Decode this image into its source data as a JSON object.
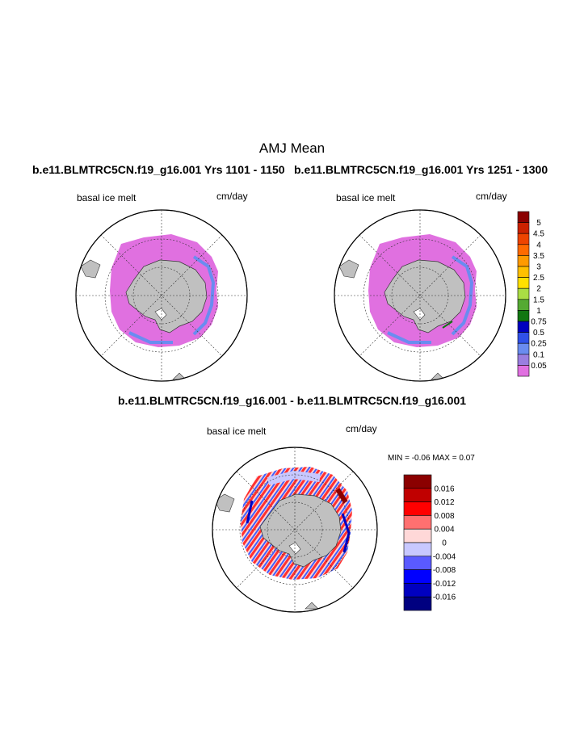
{
  "page": {
    "title": "AMJ Mean",
    "left_case_title": "b.e11.BLMTRC5CN.f19_g16.001  Yrs 1101 - 1150",
    "right_case_title": "b.e11.BLMTRC5CN.f19_g16.001  Yrs 1251 - 1300",
    "diff_title": "b.e11.BLMTRC5CN.f19_g16.001 - b.e11.BLMTRC5CN.f19_g16.001"
  },
  "panels": {
    "left": {
      "variable": "basal ice melt",
      "units": "cm/day"
    },
    "right": {
      "variable": "basal ice melt",
      "units": "cm/day"
    },
    "diff": {
      "variable": "basal ice melt",
      "units": "cm/day",
      "min_max_text": "MIN =  -0.06 MAX =   0.07"
    }
  },
  "chart_data": [
    {
      "type": "heatmap",
      "projection": "south-polar-stereographic",
      "title": "b.e11.BLMTRC5CN.f19_g16.001  Yrs 1101 - 1150",
      "variable": "basal ice melt",
      "units": "cm/day",
      "dominant_value": 0.05,
      "colorbar": {
        "labels": [
          "5",
          "4.5",
          "4",
          "3.5",
          "3",
          "2.5",
          "2",
          "1.5",
          "1",
          "0.75",
          "0.5",
          "0.25",
          "0.1",
          "0.05"
        ],
        "colors": [
          "#8b0000",
          "#cc2200",
          "#ee4400",
          "#ff6a00",
          "#ff9a00",
          "#ffc000",
          "#ffe000",
          "#aadd44",
          "#55aa33",
          "#117711",
          "#0000c0",
          "#3050e8",
          "#6a8cf0",
          "#9a7ee0",
          "#e070e0"
        ]
      }
    },
    {
      "type": "heatmap",
      "projection": "south-polar-stereographic",
      "title": "b.e11.BLMTRC5CN.f19_g16.001  Yrs 1251 - 1300",
      "variable": "basal ice melt",
      "units": "cm/day",
      "dominant_value": 0.05
    },
    {
      "type": "heatmap",
      "projection": "south-polar-stereographic",
      "title": "b.e11.BLMTRC5CN.f19_g16.001 - b.e11.BLMTRC5CN.f19_g16.001",
      "variable": "basal ice melt",
      "units": "cm/day",
      "min": -0.06,
      "max": 0.07,
      "colorbar": {
        "labels": [
          "0.016",
          "0.012",
          "0.008",
          "0.004",
          "0",
          "-0.004",
          "-0.008",
          "-0.012",
          "-0.016"
        ],
        "colors": [
          "#8b0000",
          "#c00000",
          "#ff0000",
          "#ff7070",
          "#ffd8d8",
          "#c8c8ff",
          "#5a5aff",
          "#0000ff",
          "#0000c0",
          "#000080"
        ]
      }
    }
  ]
}
